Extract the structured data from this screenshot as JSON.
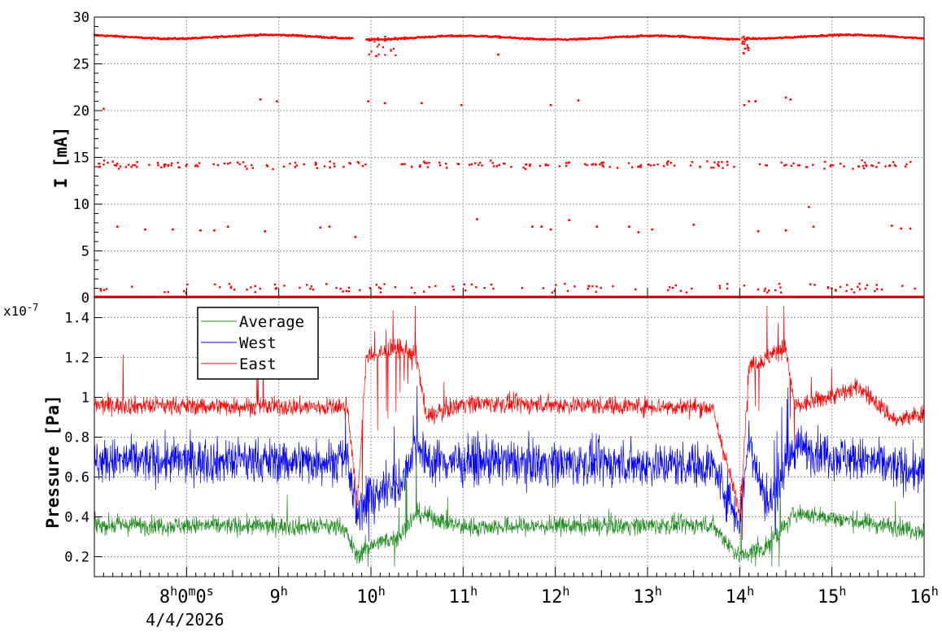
{
  "chart_data": [
    {
      "type": "scatter",
      "ylabel": "I [mA]",
      "ylim": [
        0,
        30
      ],
      "xlim": [
        7.0,
        16.0
      ],
      "yticks": [
        0,
        5,
        10,
        15,
        20,
        25,
        30
      ],
      "grid": true,
      "color": "#ff0000",
      "series": [
        {
          "values_note": "points",
          "segments": [
            {
              "x0": 7.0,
              "x1": 9.8,
              "level": 27.9
            },
            {
              "x0": 9.95,
              "x1": 14.0,
              "level": 27.8
            },
            {
              "x0": 14.05,
              "x1": 16.0,
              "level": 27.9
            }
          ],
          "outliers": [
            {
              "x": 8.8,
              "y": 21.2
            },
            {
              "x": 8.98,
              "y": 21.0
            },
            {
              "x": 9.97,
              "y": 21.0
            },
            {
              "x": 10.15,
              "y": 20.8
            },
            {
              "x": 10.55,
              "y": 20.8
            },
            {
              "x": 10.98,
              "y": 20.6
            },
            {
              "x": 11.95,
              "y": 20.6
            },
            {
              "x": 12.25,
              "y": 21.1
            },
            {
              "x": 14.05,
              "y": 20.6
            },
            {
              "x": 14.1,
              "y": 21.0
            },
            {
              "x": 14.17,
              "y": 21.0
            },
            {
              "x": 14.5,
              "y": 21.4
            },
            {
              "x": 14.55,
              "y": 21.2
            },
            {
              "x": 7.1,
              "y": 20.2
            },
            {
              "x": 11.38,
              "y": 26.0
            },
            {
              "x": 7.25,
              "y": 7.6
            },
            {
              "x": 7.55,
              "y": 7.3
            },
            {
              "x": 7.85,
              "y": 7.3
            },
            {
              "x": 8.15,
              "y": 7.2
            },
            {
              "x": 8.3,
              "y": 7.2
            },
            {
              "x": 8.45,
              "y": 7.6
            },
            {
              "x": 8.85,
              "y": 7.1
            },
            {
              "x": 9.45,
              "y": 7.5
            },
            {
              "x": 9.55,
              "y": 7.6
            },
            {
              "x": 9.83,
              "y": 6.5
            },
            {
              "x": 11.15,
              "y": 8.4
            },
            {
              "x": 11.75,
              "y": 7.6
            },
            {
              "x": 11.85,
              "y": 7.6
            },
            {
              "x": 11.95,
              "y": 7.3
            },
            {
              "x": 12.15,
              "y": 8.3
            },
            {
              "x": 12.45,
              "y": 7.6
            },
            {
              "x": 12.8,
              "y": 7.6
            },
            {
              "x": 12.9,
              "y": 7.0
            },
            {
              "x": 13.05,
              "y": 7.3
            },
            {
              "x": 13.5,
              "y": 7.8
            },
            {
              "x": 14.2,
              "y": 7.1
            },
            {
              "x": 14.5,
              "y": 7.2
            },
            {
              "x": 14.75,
              "y": 9.7
            },
            {
              "x": 14.8,
              "y": 7.6
            },
            {
              "x": 15.65,
              "y": 7.7
            },
            {
              "x": 15.75,
              "y": 7.4
            },
            {
              "x": 15.85,
              "y": 7.4
            }
          ],
          "band15": {
            "level": 14.2,
            "spread": 1.2,
            "gaps": [
              [
                9.97,
                10.3
              ],
              [
                14.0,
                14.2
              ]
            ]
          },
          "band1": {
            "level": 0.6,
            "spread": 0.6
          }
        }
      ]
    },
    {
      "type": "line",
      "ylabel": "Pressure [Pa]",
      "yexponent": "x10^{-7}",
      "exponent_label": "x10",
      "exponent_power": "-7",
      "ylim": [
        1e-08,
        1.5e-07
      ],
      "xlim": [
        7.0,
        16.0
      ],
      "yticks": [
        0.2,
        0.4,
        0.6,
        0.8,
        1.0,
        1.2,
        1.4
      ],
      "ytick_labels": [
        "0.2",
        "0.4",
        "0.6",
        "0.8",
        "1",
        "1.2",
        "1.4"
      ],
      "grid": true,
      "legend": "top-left",
      "series": [
        {
          "name": "Average",
          "color": "#228b22",
          "base": 0.35,
          "noise": 0.05,
          "segments": [
            [
              7.0,
              0.36
            ],
            [
              9.7,
              0.35
            ],
            [
              9.85,
              0.2
            ],
            [
              9.95,
              0.25
            ],
            [
              10.3,
              0.3
            ],
            [
              10.5,
              0.42
            ],
            [
              11.0,
              0.35
            ],
            [
              13.7,
              0.36
            ],
            [
              14.0,
              0.2
            ],
            [
              14.3,
              0.25
            ],
            [
              14.6,
              0.42
            ],
            [
              16.0,
              0.33
            ]
          ]
        },
        {
          "name": "West",
          "color": "#0000ff",
          "base": 0.68,
          "noise": 0.12,
          "segments": [
            [
              7.0,
              0.68
            ],
            [
              9.75,
              0.68
            ],
            [
              9.85,
              0.38
            ],
            [
              9.95,
              0.5
            ],
            [
              10.3,
              0.55
            ],
            [
              10.5,
              0.78
            ],
            [
              10.6,
              0.68
            ],
            [
              13.7,
              0.66
            ],
            [
              14.0,
              0.38
            ],
            [
              14.1,
              0.8
            ],
            [
              14.3,
              0.45
            ],
            [
              14.6,
              0.75
            ],
            [
              16.0,
              0.62
            ]
          ]
        },
        {
          "name": "East",
          "color": "#ff0000",
          "base": 0.95,
          "noise": 0.05,
          "segments": [
            [
              7.0,
              0.96
            ],
            [
              9.75,
              0.95
            ],
            [
              9.85,
              0.45
            ],
            [
              9.95,
              1.2
            ],
            [
              10.3,
              1.25
            ],
            [
              10.5,
              1.2
            ],
            [
              10.6,
              0.9
            ],
            [
              11.0,
              0.97
            ],
            [
              13.7,
              0.95
            ],
            [
              14.0,
              0.42
            ],
            [
              14.1,
              1.15
            ],
            [
              14.5,
              1.25
            ],
            [
              14.6,
              0.95
            ],
            [
              15.3,
              1.05
            ],
            [
              15.7,
              0.88
            ],
            [
              16.0,
              0.92
            ]
          ]
        }
      ]
    }
  ],
  "xaxis": {
    "ticks": [
      {
        "x": 8.0,
        "main": "8",
        "sup": "h",
        "extra": "0",
        "sup2": "m",
        "extra2": "0",
        "sup3": "s"
      },
      {
        "x": 9.0,
        "main": "9",
        "sup": "h"
      },
      {
        "x": 10.0,
        "main": "10",
        "sup": "h"
      },
      {
        "x": 11.0,
        "main": "11",
        "sup": "h"
      },
      {
        "x": 12.0,
        "main": "12",
        "sup": "h"
      },
      {
        "x": 13.0,
        "main": "13",
        "sup": "h"
      },
      {
        "x": 14.0,
        "main": "14",
        "sup": "h"
      },
      {
        "x": 15.0,
        "main": "15",
        "sup": "h"
      },
      {
        "x": 16.0,
        "main": "16",
        "sup": "h"
      }
    ],
    "date_label": "4/4/2026"
  }
}
